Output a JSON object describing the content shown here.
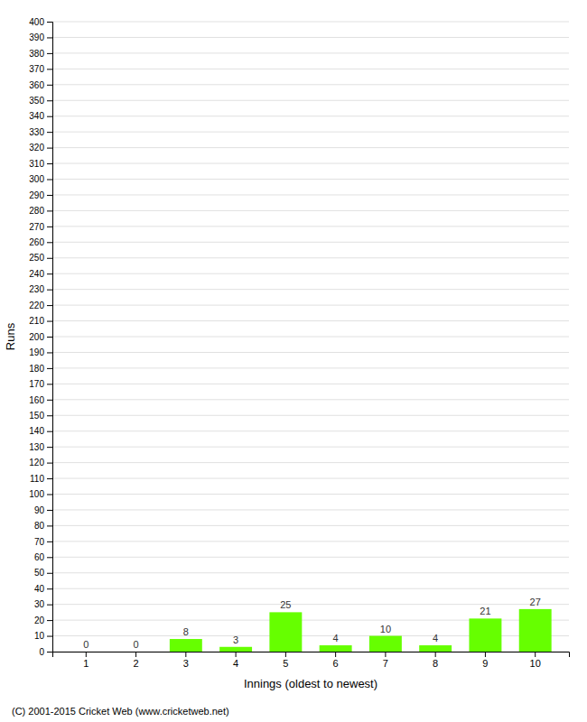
{
  "chart_data": {
    "type": "bar",
    "xlabel": "Innings (oldest to newest)",
    "ylabel": "Runs",
    "categories": [
      1,
      2,
      3,
      4,
      5,
      6,
      7,
      8,
      9,
      10
    ],
    "values": [
      0,
      0,
      8,
      3,
      25,
      4,
      10,
      4,
      21,
      27
    ],
    "color": "#66ff00",
    "ylim": [
      0,
      400
    ],
    "yticks": [
      0,
      10,
      20,
      30,
      40,
      50,
      60,
      70,
      80,
      90,
      100,
      110,
      120,
      130,
      140,
      150,
      160,
      170,
      180,
      190,
      200,
      210,
      220,
      230,
      240,
      250,
      260,
      270,
      280,
      290,
      300,
      310,
      320,
      330,
      340,
      350,
      360,
      370,
      380,
      390,
      400
    ],
    "grid": true,
    "data_labels": true,
    "annotations": [
      "(C) 2001-2015 Cricket Web (www.cricketweb.net)"
    ]
  }
}
